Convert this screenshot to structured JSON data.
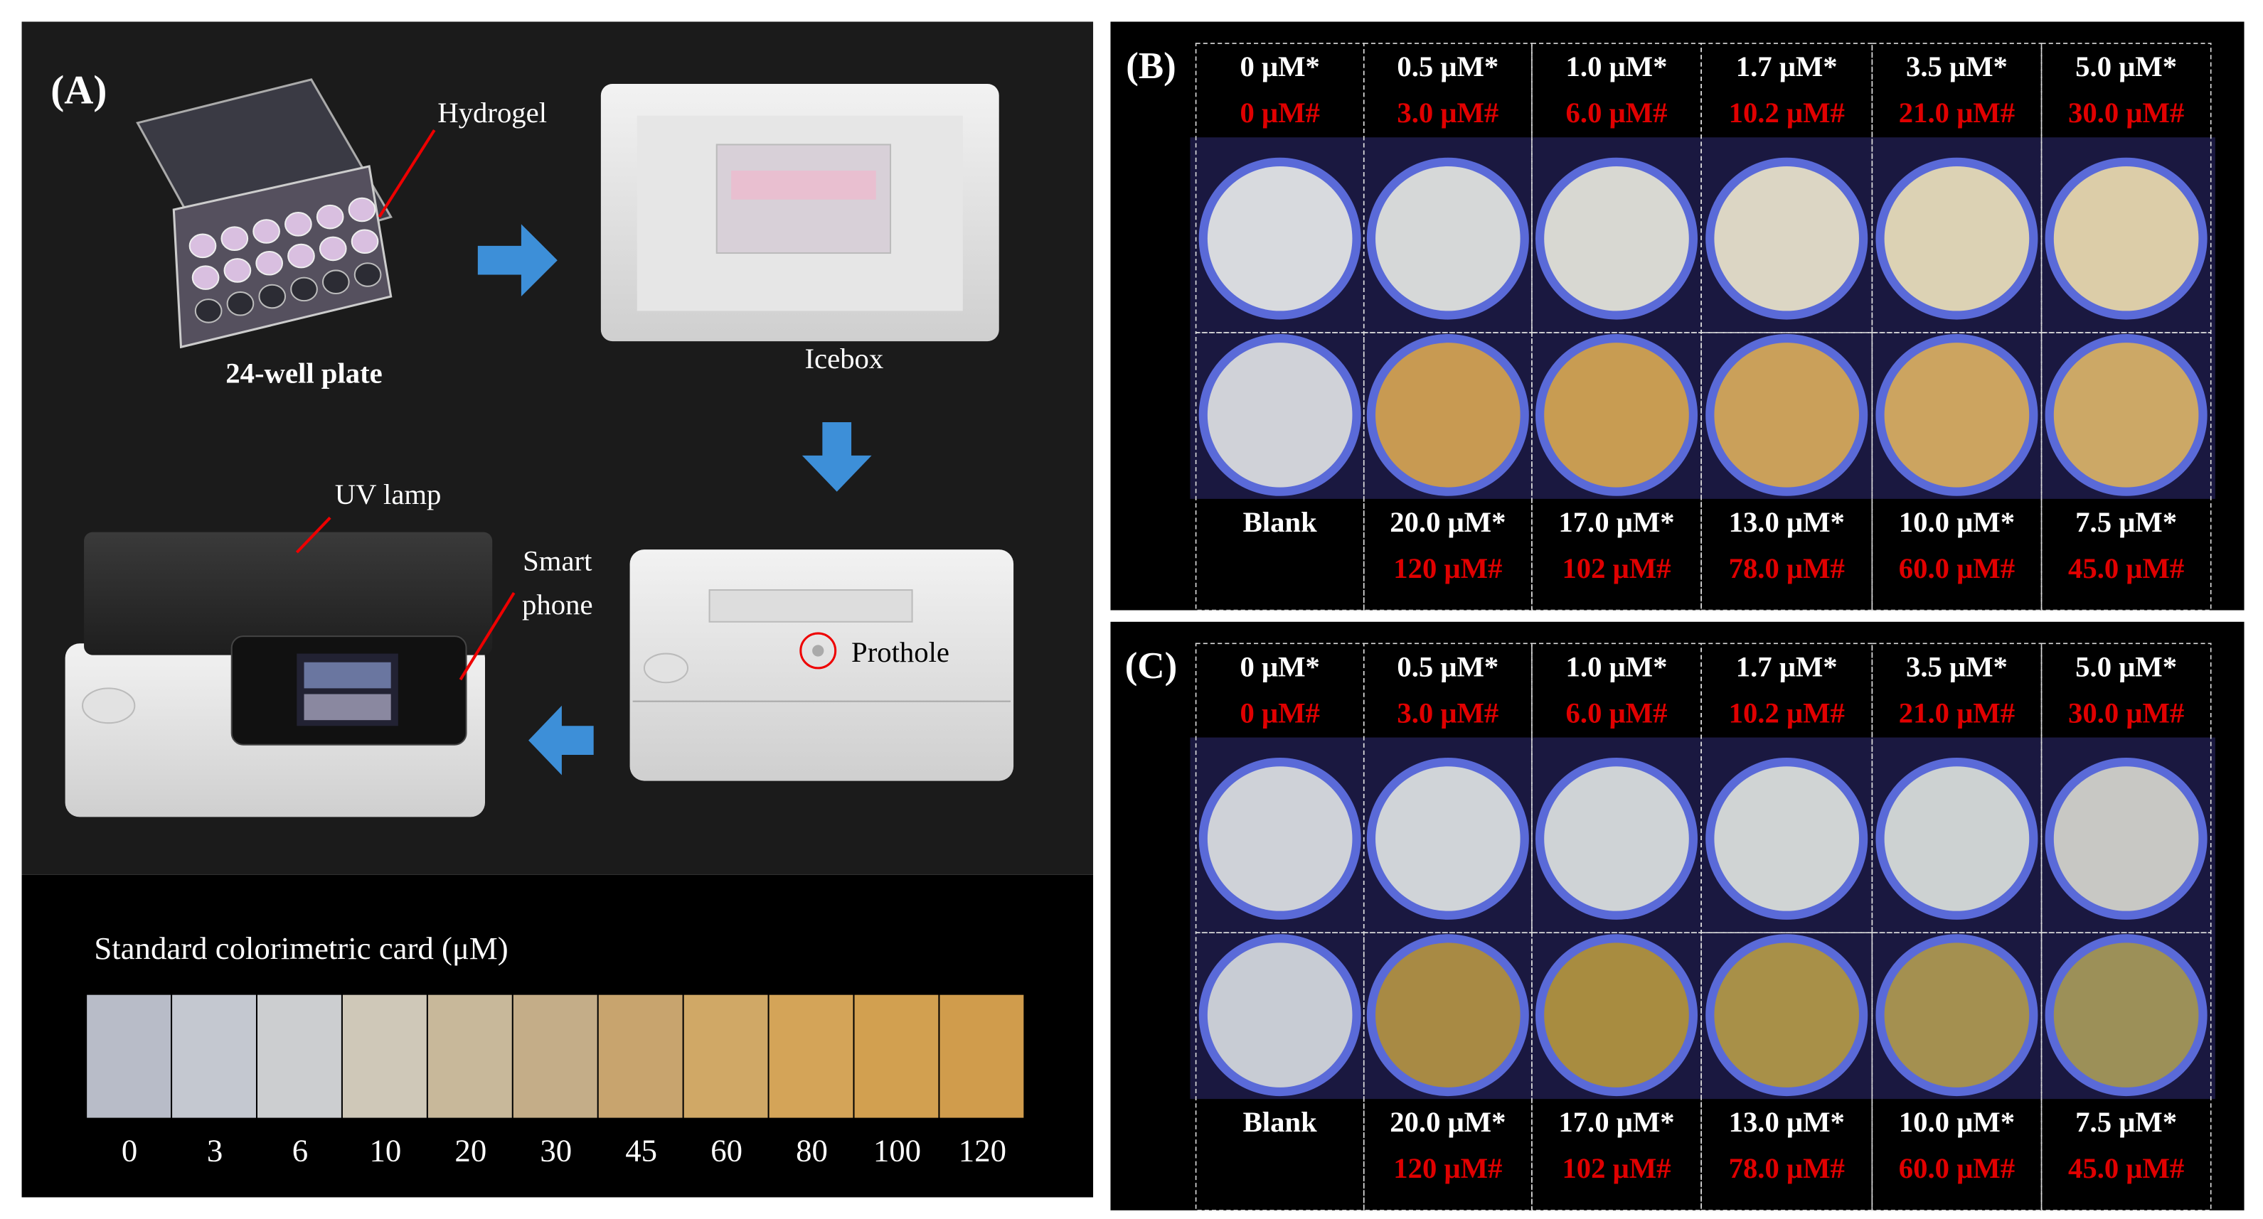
{
  "panel_a": {
    "label": "(A)",
    "hydrogel": "Hydrogel",
    "plate": "24-well plate",
    "icebox": "Icebox",
    "uv_lamp": "UV lamp",
    "smart_phone": [
      "Smart",
      "phone"
    ],
    "prothole": "Prothole",
    "card": {
      "title": "Standard colorimetric card (μM)",
      "values": [
        0,
        3,
        6,
        10,
        20,
        30,
        45,
        60,
        80,
        100,
        120
      ]
    }
  },
  "panel_b": {
    "label": "(B)",
    "top": [
      {
        "primary": "0 μM*",
        "secondary": "0 μM#"
      },
      {
        "primary": "0.5 μM*",
        "secondary": "3.0 μM#"
      },
      {
        "primary": "1.0 μM*",
        "secondary": "6.0 μM#"
      },
      {
        "primary": "1.7 μM*",
        "secondary": "10.2 μM#"
      },
      {
        "primary": "3.5 μM*",
        "secondary": "21.0 μM#"
      },
      {
        "primary": "5.0 μM*",
        "secondary": "30.0 μM#"
      }
    ],
    "bottom": [
      {
        "primary": "Blank"
      },
      {
        "primary": "20.0 μM*",
        "secondary": "120 μM#"
      },
      {
        "primary": "17.0 μM*",
        "secondary": "102 μM#"
      },
      {
        "primary": "13.0 μM*",
        "secondary": "78.0 μM#"
      },
      {
        "primary": "10.0 μM*",
        "secondary": "60.0 μM#"
      },
      {
        "primary": "7.5 μM*",
        "secondary": "45.0 μM#"
      }
    ]
  },
  "panel_c": {
    "label": "(C)",
    "top": [
      {
        "primary": "0 μM*",
        "secondary": "0 μM#"
      },
      {
        "primary": "0.5 μM*",
        "secondary": "3.0 μM#"
      },
      {
        "primary": "1.0 μM*",
        "secondary": "6.0 μM#"
      },
      {
        "primary": "1.7 μM*",
        "secondary": "10.2 μM#"
      },
      {
        "primary": "3.5 μM*",
        "secondary": "21.0 μM#"
      },
      {
        "primary": "5.0 μM*",
        "secondary": "30.0 μM#"
      }
    ],
    "bottom": [
      {
        "primary": "Blank"
      },
      {
        "primary": "20.0 μM*",
        "secondary": "120 μM#"
      },
      {
        "primary": "17.0 μM*",
        "secondary": "102 μM#"
      },
      {
        "primary": "13.0 μM*",
        "secondary": "78.0 μM#"
      },
      {
        "primary": "10.0 μM*",
        "secondary": "60.0 μM#"
      },
      {
        "primary": "7.5 μM*",
        "secondary": "45.0 μM#"
      }
    ]
  }
}
